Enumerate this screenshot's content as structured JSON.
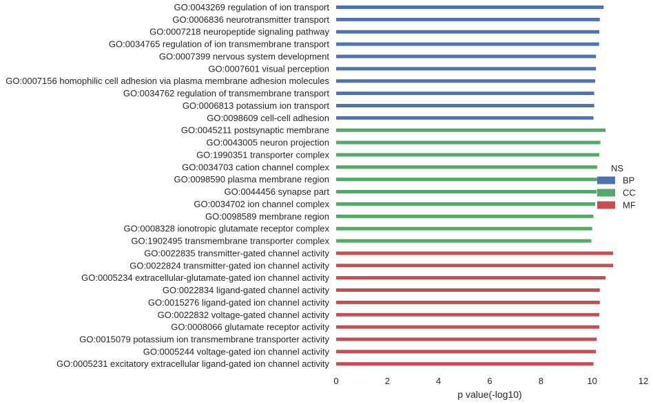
{
  "chart_data": {
    "type": "bar",
    "orientation": "horizontal",
    "xlabel": "p value(-log10)",
    "xlim": [
      0,
      12
    ],
    "xticks": [
      0,
      2,
      4,
      6,
      8,
      10,
      12
    ],
    "legend": {
      "title": "NS",
      "placement": "right",
      "entries": [
        {
          "name": "BP",
          "color": "#4c72b0"
        },
        {
          "name": "CC",
          "color": "#55a868"
        },
        {
          "name": "MF",
          "color": "#c44e52"
        }
      ]
    },
    "categories": [
      "GO:0043269 regulation of ion transport",
      "GO:0006836 neurotransmitter transport",
      "GO:0007218 neuropeptide signaling pathway",
      "GO:0034765 regulation of ion transmembrane transport",
      "GO:0007399 nervous system development",
      "GO:0007601 visual perception",
      "GO:0007156 homophilic cell adhesion via plasma membrane adhesion molecules",
      "GO:0034762 regulation of transmembrane transport",
      "GO:0006813 potassium ion transport",
      "GO:0098609 cell-cell adhesion",
      "GO:0045211 postsynaptic membrane",
      "GO:0043005 neuron projection",
      "GO:1990351 transporter complex",
      "GO:0034703 cation channel complex",
      "GO:0098590 plasma membrane region",
      "GO:0044456 synapse part",
      "GO:0034702 ion channel complex",
      "GO:0098589 membrane region",
      "GO:0008328 ionotropic glutamate receptor complex",
      "GO:1902495 transmembrane transporter complex",
      "GO:0022835 transmitter-gated channel activity",
      "GO:0022824 transmitter-gated ion channel activity",
      "GO:0005234 extracellular-glutamate-gated ion channel activity",
      "GO:0022834 ligand-gated channel activity",
      "GO:0015276 ligand-gated ion channel activity",
      "GO:0022832 voltage-gated channel activity",
      "GO:0008066 glutamate receptor activity",
      "GO:0015079 potassium ion transmembrane transporter activity",
      "GO:0005244 voltage-gated ion channel activity",
      "GO:0005231 excitatory extracellular ligand-gated ion channel activity"
    ],
    "groups": [
      "BP",
      "BP",
      "BP",
      "BP",
      "BP",
      "BP",
      "BP",
      "BP",
      "BP",
      "BP",
      "CC",
      "CC",
      "CC",
      "CC",
      "CC",
      "CC",
      "CC",
      "CC",
      "CC",
      "CC",
      "MF",
      "MF",
      "MF",
      "MF",
      "MF",
      "MF",
      "MF",
      "MF",
      "MF",
      "MF"
    ],
    "values": [
      10.45,
      10.3,
      10.28,
      10.27,
      10.15,
      10.15,
      10.12,
      10.08,
      10.08,
      10.05,
      10.52,
      10.32,
      10.28,
      10.2,
      10.2,
      10.18,
      10.12,
      10.05,
      10.0,
      9.97,
      10.82,
      10.82,
      10.52,
      10.3,
      10.3,
      10.28,
      10.28,
      10.18,
      10.15,
      10.05
    ]
  }
}
